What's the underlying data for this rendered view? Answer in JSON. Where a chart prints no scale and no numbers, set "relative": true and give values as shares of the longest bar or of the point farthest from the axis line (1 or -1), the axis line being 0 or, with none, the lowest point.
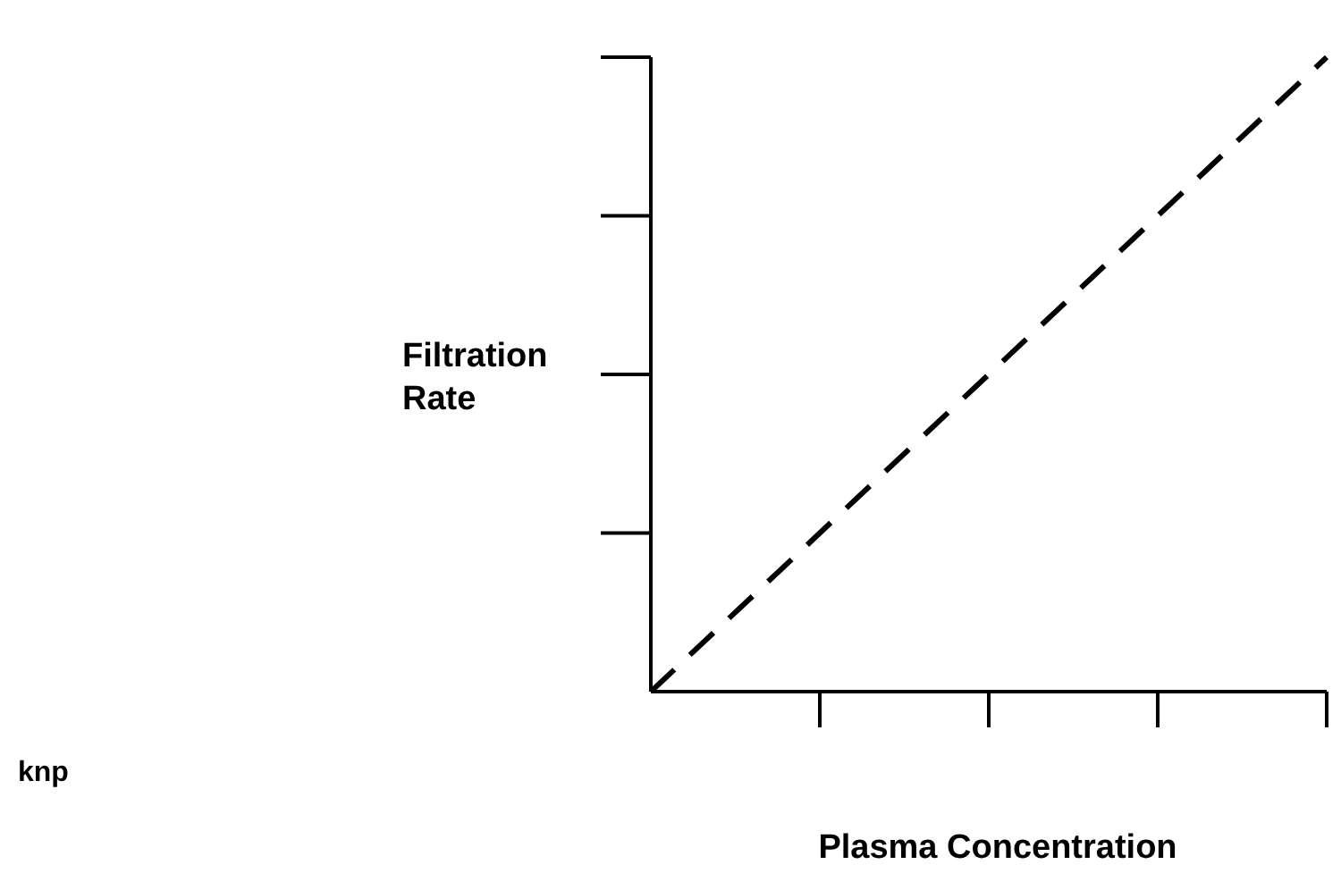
{
  "chart_data": {
    "type": "line",
    "relative": true,
    "xlabel": "Plasma Concentration",
    "ylabel": "Filtration\nRate",
    "annotations": [
      "knp"
    ],
    "categories": [
      null,
      null,
      null,
      null,
      null
    ],
    "series": [
      {
        "color": "#000000",
        "values": [
          0,
          0.25,
          0.5,
          0.75,
          1
        ]
      }
    ],
    "line_style": "dashed",
    "marker": "none",
    "grid": false
  }
}
